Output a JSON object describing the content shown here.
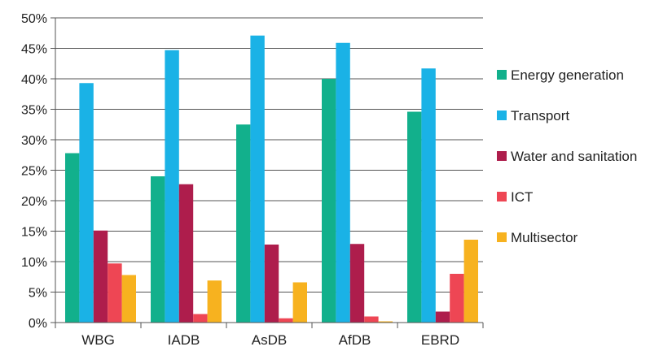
{
  "chart_data": {
    "type": "bar",
    "categories": [
      "WBG",
      "IADB",
      "AsDB",
      "AfDB",
      "EBRD"
    ],
    "series": [
      {
        "name": "Energy generation",
        "color": "#12b08c",
        "values": [
          27.8,
          24.0,
          32.5,
          40.0,
          34.6
        ]
      },
      {
        "name": "Transport",
        "color": "#1ab2e6",
        "values": [
          39.3,
          44.7,
          47.1,
          45.9,
          41.7
        ]
      },
      {
        "name": "Water and sanitation",
        "color": "#ae1d4c",
        "values": [
          15.1,
          22.7,
          12.8,
          12.9,
          1.8
        ]
      },
      {
        "name": "ICT",
        "color": "#ee4654",
        "values": [
          9.7,
          1.4,
          0.7,
          1.0,
          8.0
        ]
      },
      {
        "name": "Multisector",
        "color": "#f7b21f",
        "values": [
          7.8,
          6.9,
          6.6,
          0.2,
          13.6
        ]
      }
    ],
    "ylim": [
      0,
      50
    ],
    "yticks": [
      "0%",
      "5%",
      "10%",
      "15%",
      "20%",
      "25%",
      "30%",
      "35%",
      "40%",
      "45%",
      "50%"
    ],
    "grid": "horizontal",
    "legend_position": "right",
    "title": "",
    "xlabel": "",
    "ylabel": ""
  }
}
